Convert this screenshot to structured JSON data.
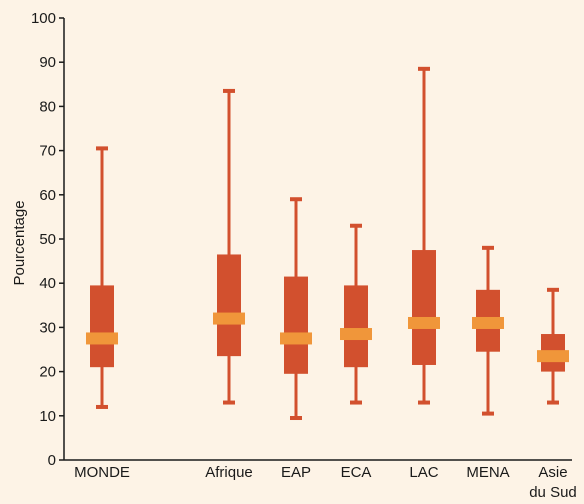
{
  "chart_data": {
    "type": "box",
    "ylabel": "Pourcentage",
    "ylim": [
      0,
      100
    ],
    "yticks": [
      0,
      10,
      20,
      30,
      40,
      50,
      60,
      70,
      80,
      90,
      100
    ],
    "grid": false,
    "colors": {
      "box": "#d2502e",
      "whisker": "#d2502e",
      "median": "#f0963a",
      "axis": "#1a1a1a",
      "background": "#fdf3e6"
    },
    "categories": [
      {
        "label": [
          "MONDE"
        ],
        "min": 12,
        "q1": 21,
        "median": 27.5,
        "q3": 39.5,
        "max": 70.5
      },
      {
        "label": [
          "Afrique"
        ],
        "min": 13,
        "q1": 23.5,
        "median": 32,
        "q3": 46.5,
        "max": 83.5
      },
      {
        "label": [
          "EAP"
        ],
        "min": 9.5,
        "q1": 19.5,
        "median": 27.5,
        "q3": 41.5,
        "max": 59
      },
      {
        "label": [
          "ECA"
        ],
        "min": 13,
        "q1": 21,
        "median": 28.5,
        "q3": 39.5,
        "max": 53
      },
      {
        "label": [
          "LAC"
        ],
        "min": 13,
        "q1": 21.5,
        "median": 31,
        "q3": 47.5,
        "max": 88.5
      },
      {
        "label": [
          "MENA"
        ],
        "min": 10.5,
        "q1": 24.5,
        "median": 31,
        "q3": 38.5,
        "max": 48
      },
      {
        "label": [
          "Asie",
          "du Sud"
        ],
        "min": 13,
        "q1": 20,
        "median": 23.5,
        "q3": 28.5,
        "max": 38.5
      }
    ]
  }
}
